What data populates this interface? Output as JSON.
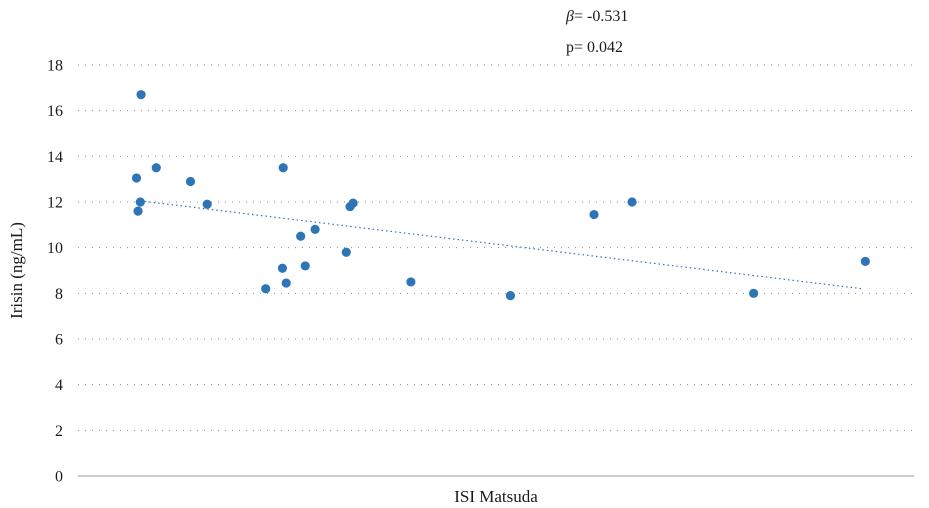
{
  "chart_data": {
    "type": "scatter",
    "title": "",
    "xlabel": "ISI Matsuda",
    "ylabel": "Irisin (ng/mL)",
    "ylim": [
      0,
      18
    ],
    "y_ticks": [
      "0",
      "2",
      "4",
      "6",
      "8",
      "10",
      "12",
      "14",
      "16",
      "18"
    ],
    "x_ticks_shown": false,
    "grid": "horizontal-dotted",
    "legend": "none",
    "point_color": "#2e75b6",
    "trendline_color": "#2e75b6",
    "annotations": {
      "beta_symbol": "β",
      "beta_text": "= -0.531",
      "p_text": "p= 0.042"
    },
    "x_domain": [
      0,
      100
    ],
    "points": [
      {
        "x": 8.3,
        "y": 16.7
      },
      {
        "x": 7.7,
        "y": 13.05
      },
      {
        "x": 10.3,
        "y": 13.5
      },
      {
        "x": 8.2,
        "y": 12.0
      },
      {
        "x": 7.9,
        "y": 11.6
      },
      {
        "x": 14.8,
        "y": 12.9
      },
      {
        "x": 17.0,
        "y": 11.9
      },
      {
        "x": 27.0,
        "y": 13.5
      },
      {
        "x": 29.3,
        "y": 10.5
      },
      {
        "x": 31.2,
        "y": 10.8
      },
      {
        "x": 26.9,
        "y": 9.1
      },
      {
        "x": 29.9,
        "y": 9.2
      },
      {
        "x": 27.4,
        "y": 8.45
      },
      {
        "x": 24.7,
        "y": 8.2
      },
      {
        "x": 35.3,
        "y": 9.8
      },
      {
        "x": 35.8,
        "y": 11.8
      },
      {
        "x": 36.2,
        "y": 11.95
      },
      {
        "x": 43.8,
        "y": 8.5
      },
      {
        "x": 56.9,
        "y": 7.9
      },
      {
        "x": 67.9,
        "y": 11.45
      },
      {
        "x": 72.9,
        "y": 12.0
      },
      {
        "x": 88.9,
        "y": 8.0
      },
      {
        "x": 103.6,
        "y": 9.4
      }
    ],
    "trendline": {
      "x": [
        8.2,
        103.2
      ],
      "y": [
        12.05,
        8.2
      ]
    }
  }
}
